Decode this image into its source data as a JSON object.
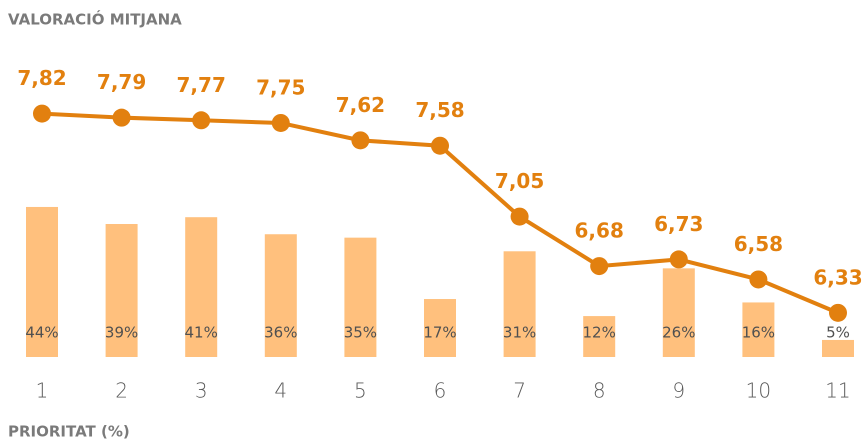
{
  "chart_data": {
    "type": "bar",
    "categories": [
      "1",
      "2",
      "3",
      "4",
      "5",
      "6",
      "7",
      "8",
      "9",
      "10",
      "11"
    ],
    "series": [
      {
        "name": "PRIORITAT (%)",
        "type": "bar",
        "color": "#ffc07d",
        "values": [
          44,
          39,
          41,
          36,
          35,
          17,
          31,
          12,
          26,
          16,
          5
        ],
        "value_labels": [
          "44%",
          "39%",
          "41%",
          "36%",
          "35%",
          "17%",
          "31%",
          "12%",
          "26%",
          "16%",
          "5%"
        ]
      },
      {
        "name": "VALORACIÓ MITJANA",
        "type": "line",
        "axis": "y2",
        "color": "#e2800f",
        "values": [
          7.82,
          7.79,
          7.77,
          7.75,
          7.62,
          7.58,
          7.05,
          6.68,
          6.73,
          6.58,
          6.33
        ],
        "value_labels": [
          "7,82",
          "7,79",
          "7,77",
          "7,75",
          "7,62",
          "7,58",
          "7,05",
          "6,68",
          "6,73",
          "6,58",
          "6,33"
        ]
      }
    ],
    "ylim": [
      0,
      100
    ],
    "y2lim": [
      6,
      8.55
    ],
    "grid": false
  }
}
